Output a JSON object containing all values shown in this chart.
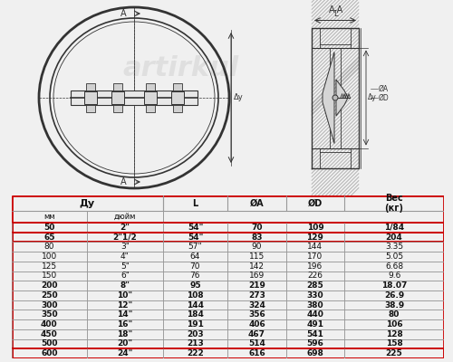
{
  "rows": [
    [
      "50",
      "2\"",
      "54\"",
      "70",
      "109",
      "1/84"
    ],
    [
      "65",
      "2\"1/2",
      "54\"",
      "83",
      "129",
      "204"
    ],
    [
      "80",
      "3\"",
      "57\"",
      "90",
      "144",
      "3.35"
    ],
    [
      "100",
      "4\"",
      "64",
      "115",
      "170",
      "5.05"
    ],
    [
      "125",
      "5\"",
      "70",
      "142",
      "196",
      "6.68"
    ],
    [
      "150",
      "6\"",
      "76",
      "169",
      "226",
      "9.6"
    ],
    [
      "200",
      "8\"",
      "95",
      "219",
      "285",
      "18.07"
    ],
    [
      "250",
      "10\"",
      "108",
      "273",
      "330",
      "26.9"
    ],
    [
      "300",
      "12\"",
      "144",
      "324",
      "380",
      "38.9"
    ],
    [
      "350",
      "14\"",
      "184",
      "356",
      "440",
      "80"
    ],
    [
      "400",
      "16\"",
      "191",
      "406",
      "491",
      "106"
    ],
    [
      "450",
      "18\"",
      "203",
      "467",
      "541",
      "128"
    ],
    [
      "500",
      "20\"",
      "213",
      "514",
      "596",
      "158"
    ],
    [
      "600",
      "24\"",
      "222",
      "616",
      "698",
      "225"
    ]
  ],
  "red_border_rows": [
    0,
    1,
    13
  ],
  "bold_rows": [
    0,
    1,
    6,
    7,
    8,
    9,
    10,
    11,
    12,
    13
  ],
  "border_color": "#cc0000",
  "inner_border": "#999999",
  "fig_bg": "#f0f0f0",
  "draw_bg": "#ffffff",
  "line_color": "#333333",
  "hatch_color": "#888888",
  "watermark_color": "#cccccc"
}
